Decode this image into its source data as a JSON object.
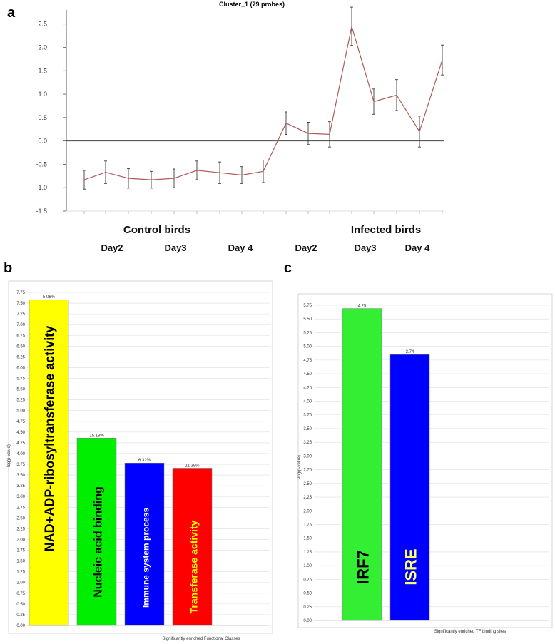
{
  "panels": {
    "a": "a",
    "b": "b",
    "c": "c"
  },
  "chart_data": [
    {
      "type": "line",
      "title": "Cluster_1 (79 probes)",
      "ylim": [
        -1.5,
        2.8
      ],
      "yticks": [
        -1.5,
        -1.0,
        -0.5,
        0.0,
        0.5,
        1.0,
        1.5,
        2.0,
        2.5
      ],
      "ytick_labels": [
        "-1.5",
        "-1.0",
        "-0.5",
        "0.0",
        "0.5",
        "1.0",
        "1.5",
        "2.0",
        "2.5"
      ],
      "group_labels": [
        "Control birds",
        "Infected birds"
      ],
      "day_labels": [
        "Day2",
        "Day3",
        "Day 4",
        "Day2",
        "Day3",
        "Day 4"
      ],
      "series": [
        {
          "values": [
            -0.83,
            -0.67,
            -0.8,
            -0.83,
            -0.8,
            -0.63,
            -0.68,
            -0.73,
            -0.65,
            0.38,
            0.16,
            0.14,
            2.45,
            0.84,
            0.98,
            0.2,
            1.73
          ],
          "err": [
            0.2,
            0.24,
            0.21,
            0.18,
            0.2,
            0.2,
            0.23,
            0.18,
            0.24,
            0.24,
            0.24,
            0.27,
            0.41,
            0.27,
            0.33,
            0.33,
            0.32
          ]
        }
      ],
      "grid": false,
      "line_color": "#b05a5a"
    },
    {
      "type": "bar",
      "xlabel": "Significantly enriched Functional Classes",
      "ylabel": "-log(p-value)",
      "ylim": [
        0,
        7.75
      ],
      "ytick_step": 0.25,
      "categories": [
        "NAD+ADP-ribosyltransferase activity",
        "Nucleic acid binding",
        "Immune system process",
        "Transferase activity"
      ],
      "values": [
        7.58,
        4.36,
        3.78,
        3.66
      ],
      "bar_labels": [
        "5.06%",
        "15.18%",
        "6.32%",
        "11.39%"
      ],
      "colors": [
        "#ffff00",
        "#00ee00",
        "#0000ff",
        "#ff0000"
      ],
      "label_colors": [
        "#000000",
        "#000000",
        "#ffffff",
        "#ffff00"
      ],
      "grid": true
    },
    {
      "type": "bar",
      "xlabel": "Significantly enriched TF binding sites",
      "ylabel": "-log(p-value)",
      "ylim": [
        0,
        5.75
      ],
      "ytick_step": 0.25,
      "categories": [
        "IRF7",
        "ISRE"
      ],
      "values": [
        5.69,
        4.85
      ],
      "bar_labels": [
        "4.25",
        "3.74"
      ],
      "colors": [
        "#33ee33",
        "#0000ff"
      ],
      "label_colors": [
        "#000000",
        "#ffff66"
      ],
      "grid": true
    }
  ]
}
